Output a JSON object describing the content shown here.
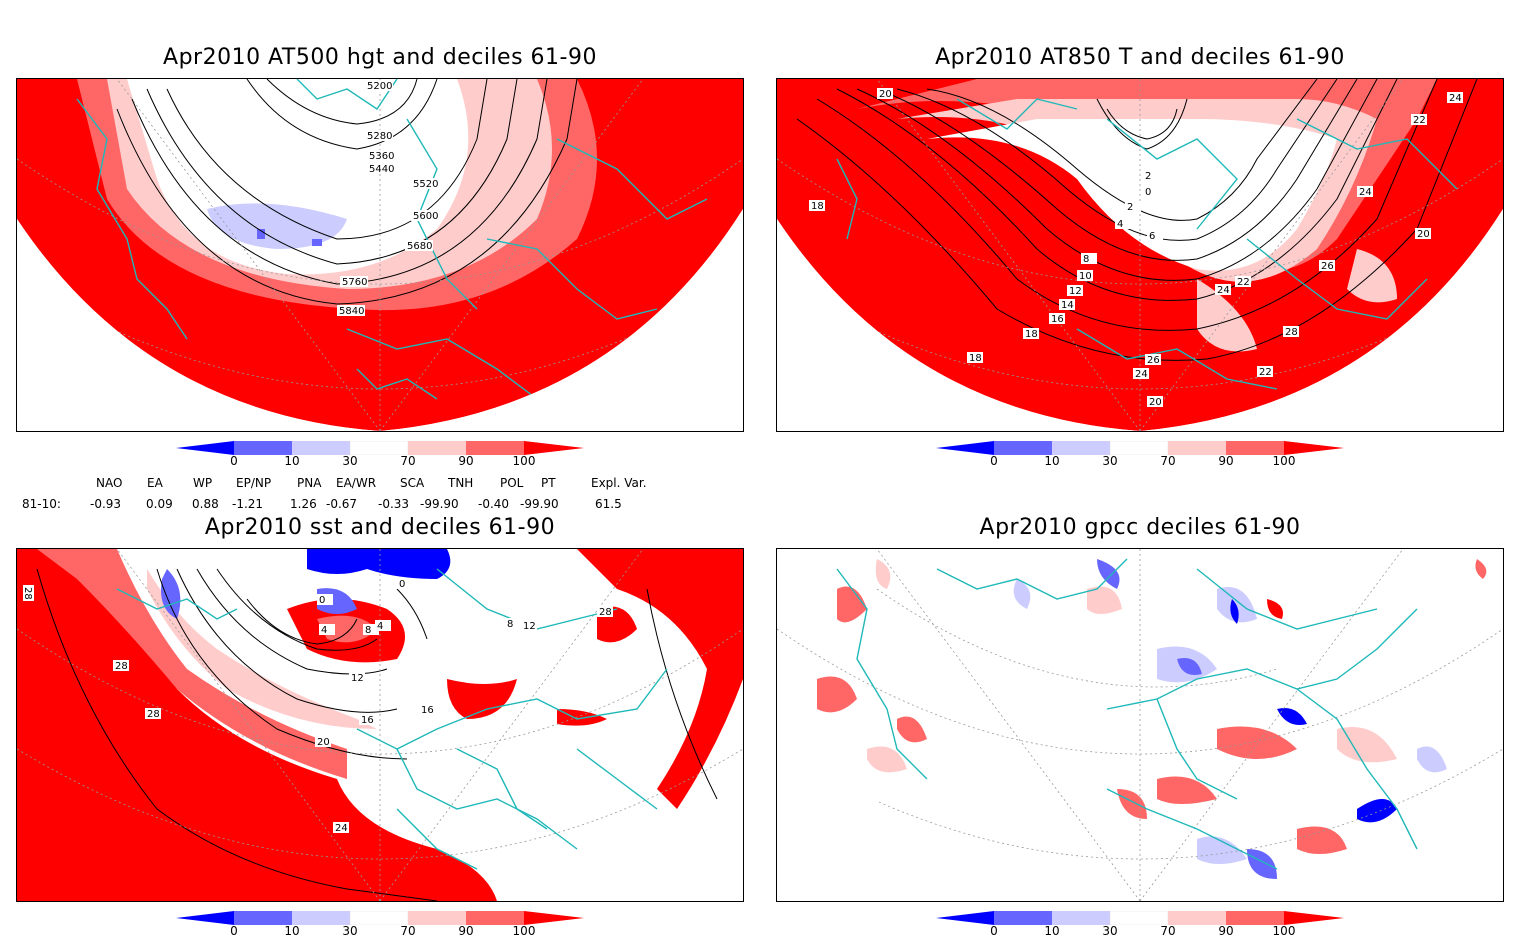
{
  "colors": {
    "strong_red": "#ff0000",
    "mid_red": "#ff6666",
    "light_red": "#ffcccc",
    "light_blue": "#ccccff",
    "mid_blue": "#6666ff",
    "strong_blue": "#0000ff",
    "coast": "#1fb8b8"
  },
  "colorbar": {
    "ticks": [
      "0",
      "10",
      "30",
      "70",
      "90",
      "100"
    ]
  },
  "panels": {
    "p1": {
      "title": "Apr2010 AT500 hgt and deciles 61-90",
      "contour_labels": [
        "5200",
        "5280",
        "5360",
        "5440",
        "5520",
        "5600",
        "5680",
        "5760",
        "5840"
      ]
    },
    "p2": {
      "title": "Apr2010 AT850 T and deciles 61-90",
      "contour_labels": [
        "20",
        "18",
        "24",
        "22",
        "24",
        "20",
        "2",
        "0",
        "2",
        "4",
        "6",
        "8",
        "10",
        "12",
        "14",
        "16",
        "18",
        "22",
        "24",
        "26",
        "28",
        "26",
        "24",
        "22",
        "20",
        "18"
      ]
    },
    "p3": {
      "title": "Apr2010 sst and deciles 61-90",
      "contour_labels": [
        "28",
        "28",
        "28",
        "0",
        "0",
        "4",
        "8",
        "4",
        "12",
        "16",
        "16",
        "20",
        "24",
        "12",
        "8",
        "28"
      ]
    },
    "p4": {
      "title": "Apr2010 gpcc deciles 61-90"
    }
  },
  "indices": {
    "headers": [
      "NAO",
      "EA",
      "WP",
      "EP/NP",
      "PNA",
      "EA/WR",
      "SCA",
      "TNH",
      "POL",
      "PT",
      "Expl. Var."
    ],
    "row_label": "81-10:",
    "values": [
      "-0.93",
      "0.09",
      "0.88",
      "-1.21",
      "1.26",
      "-0.67",
      "-0.33",
      "-99.90",
      "-0.40",
      "-99.90",
      "61.5"
    ]
  }
}
